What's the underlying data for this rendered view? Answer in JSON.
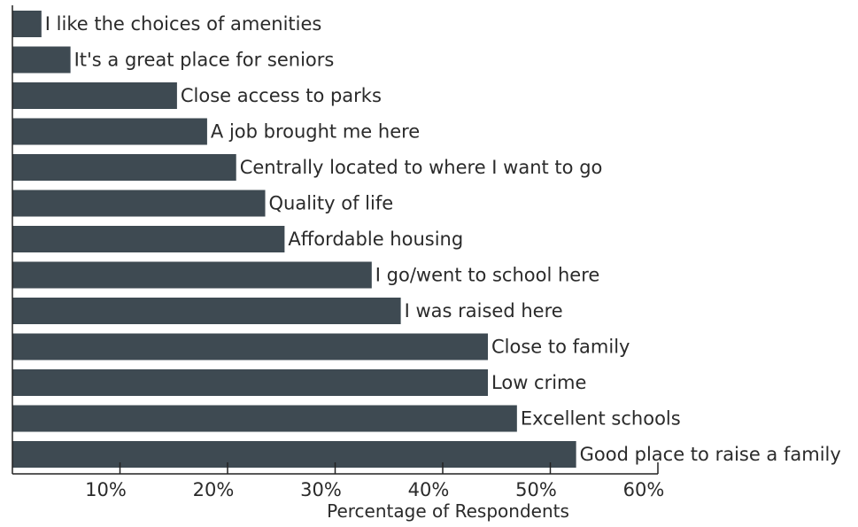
{
  "chart_data": {
    "type": "bar",
    "orientation": "horizontal",
    "categories": [
      "I like the choices of amenities",
      "It's a great place for seniors",
      "Close access to parks",
      "A job brought me here",
      "Centrally located to where I want to go",
      "Quality of life",
      "Affordable housing",
      "I go/went to school here",
      "I was raised here",
      "Close to family",
      "Low crime",
      "Excellent schools",
      "Good place to raise a family"
    ],
    "values": [
      2.7,
      5.4,
      15.3,
      18.1,
      20.8,
      23.5,
      25.3,
      33.4,
      36.1,
      44.2,
      44.2,
      46.9,
      52.4
    ],
    "title": "",
    "xlabel": "Percentage of Respondents",
    "ylabel": "",
    "xlim": [
      0,
      60
    ],
    "xticks": [
      10,
      20,
      30,
      40,
      50,
      60
    ],
    "xtick_labels": [
      "10%",
      "20%",
      "30%",
      "40%",
      "50%",
      "60%"
    ],
    "grid": false,
    "legend": "none",
    "bar_color": "#3e4a52"
  }
}
